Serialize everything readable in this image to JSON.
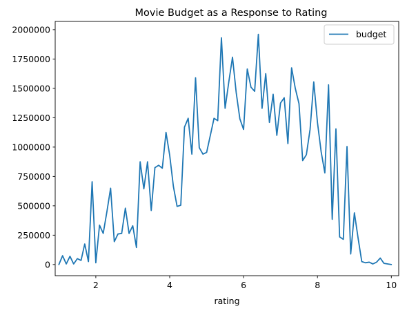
{
  "chart_data": {
    "type": "line",
    "title": "Movie Budget as a Response to Rating",
    "xlabel": "rating",
    "ylabel": "",
    "xlim": [
      0.9,
      10.2
    ],
    "ylim": [
      -95000,
      2070000
    ],
    "xticks": [
      2,
      4,
      6,
      8,
      10
    ],
    "yticks": [
      0,
      250000,
      500000,
      750000,
      1000000,
      1250000,
      1500000,
      1750000,
      2000000
    ],
    "grid": false,
    "legend": {
      "placement": "top-right",
      "entries": [
        "budget"
      ]
    },
    "colors": {
      "series": "#1f77b4",
      "axes": "#000000"
    },
    "series": [
      {
        "name": "budget",
        "x": [
          1.0,
          1.1,
          1.2,
          1.3,
          1.4,
          1.5,
          1.6,
          1.7,
          1.8,
          1.9,
          2.0,
          2.1,
          2.2,
          2.3,
          2.4,
          2.5,
          2.6,
          2.7,
          2.8,
          2.9,
          3.0,
          3.1,
          3.2,
          3.3,
          3.4,
          3.5,
          3.6,
          3.7,
          3.8,
          3.9,
          4.0,
          4.1,
          4.2,
          4.3,
          4.4,
          4.5,
          4.6,
          4.7,
          4.8,
          4.9,
          5.0,
          5.1,
          5.2,
          5.3,
          5.4,
          5.5,
          5.6,
          5.7,
          5.8,
          5.9,
          6.0,
          6.1,
          6.2,
          6.3,
          6.4,
          6.5,
          6.6,
          6.7,
          6.8,
          6.9,
          7.0,
          7.1,
          7.2,
          7.3,
          7.4,
          7.5,
          7.6,
          7.7,
          7.8,
          7.9,
          8.0,
          8.1,
          8.2,
          8.3,
          8.4,
          8.5,
          8.6,
          8.7,
          8.8,
          8.9,
          9.0,
          9.1,
          9.2,
          9.3,
          9.4,
          9.5,
          9.6,
          9.7,
          9.8,
          9.9,
          10.0
        ],
        "values": [
          0,
          75000,
          5000,
          70000,
          5000,
          50000,
          35000,
          175000,
          25000,
          705000,
          15000,
          335000,
          265000,
          450000,
          650000,
          195000,
          260000,
          265000,
          480000,
          265000,
          330000,
          145000,
          875000,
          645000,
          875000,
          460000,
          825000,
          845000,
          820000,
          1125000,
          930000,
          665000,
          495000,
          505000,
          1170000,
          1245000,
          940000,
          1590000,
          995000,
          940000,
          955000,
          1100000,
          1245000,
          1225000,
          1930000,
          1330000,
          1555000,
          1765000,
          1465000,
          1240000,
          1150000,
          1665000,
          1510000,
          1475000,
          1960000,
          1330000,
          1625000,
          1210000,
          1450000,
          1100000,
          1375000,
          1420000,
          1030000,
          1675000,
          1500000,
          1370000,
          885000,
          935000,
          1150000,
          1555000,
          1210000,
          960000,
          780000,
          1530000,
          385000,
          1155000,
          235000,
          215000,
          1005000,
          90000,
          440000,
          225000,
          25000,
          15000,
          20000,
          5000,
          20000,
          55000,
          10000,
          5000,
          0
        ]
      }
    ]
  }
}
